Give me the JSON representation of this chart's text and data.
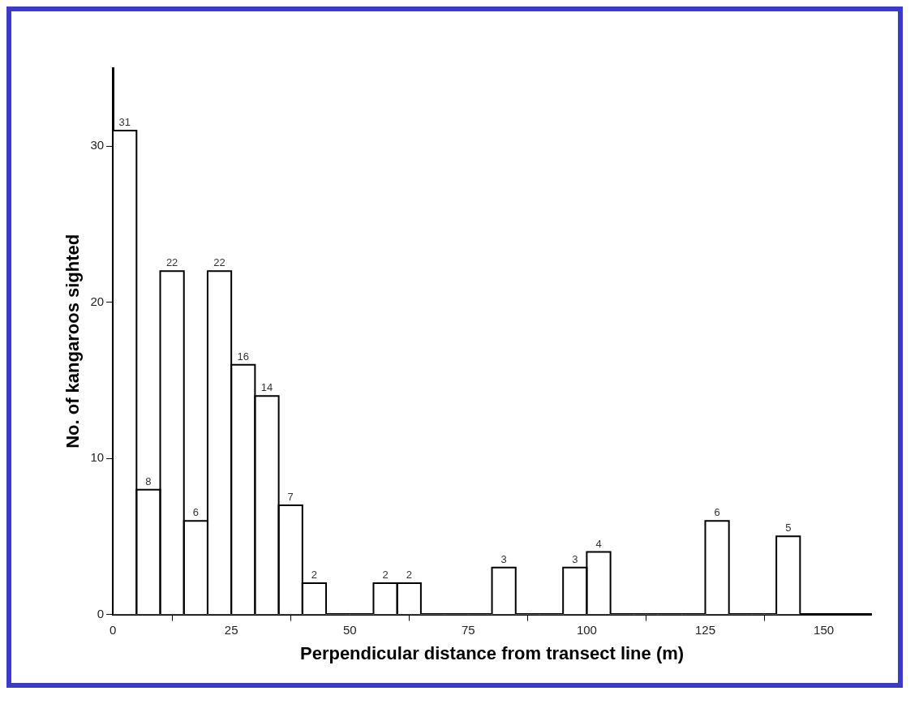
{
  "chart_data": {
    "type": "histogram",
    "xlabel": "Perpendicular distance from transect line (m)",
    "ylabel": "No. of kangaroos sighted",
    "bins": [
      0,
      5,
      10,
      15,
      20,
      25,
      30,
      35,
      40,
      45,
      50,
      55,
      60,
      65,
      70,
      75,
      80,
      85,
      90,
      95,
      100,
      105,
      110,
      115,
      120,
      125,
      130,
      135,
      140,
      145
    ],
    "values": [
      31,
      8,
      22,
      6,
      22,
      16,
      14,
      7,
      2,
      0,
      0,
      2,
      2,
      0,
      0,
      0,
      3,
      0,
      0,
      3,
      4,
      0,
      0,
      0,
      0,
      6,
      0,
      0,
      5
    ],
    "value_labels": [
      "31",
      "8",
      "22",
      "6",
      "22",
      "16",
      "14",
      "7",
      "2",
      null,
      null,
      "2",
      "2",
      null,
      null,
      null,
      "3",
      null,
      null,
      "3",
      "4",
      null,
      null,
      null,
      null,
      "6",
      null,
      null,
      "5"
    ],
    "color": "#ffffff",
    "xlim": [
      0,
      160
    ],
    "xticks": [
      0,
      25,
      50,
      75,
      100,
      125,
      150
    ],
    "ylim": [
      0,
      35
    ],
    "yticks": [
      0,
      10,
      20,
      30
    ]
  }
}
